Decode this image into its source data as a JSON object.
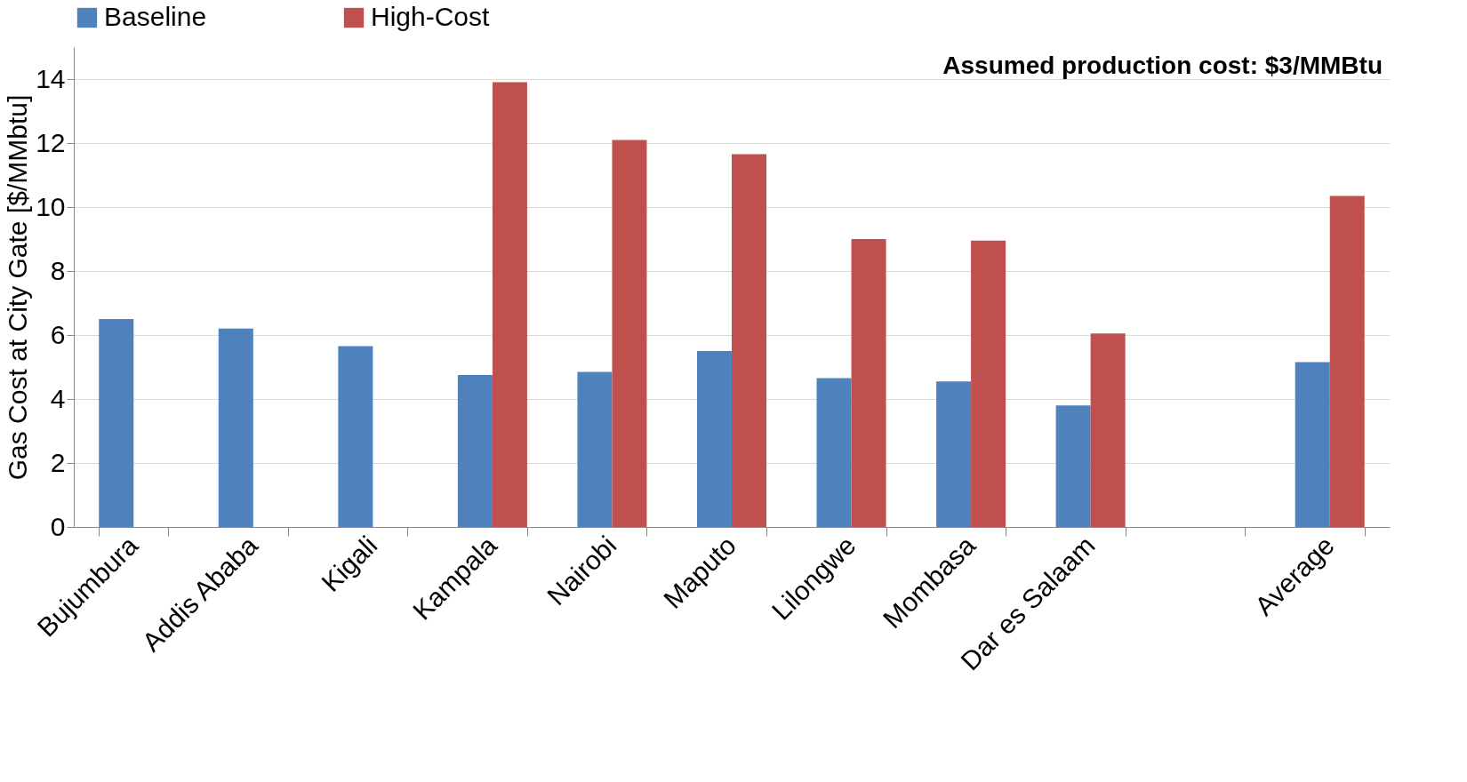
{
  "chart_data": {
    "type": "bar",
    "categories": [
      "Bujumbura",
      "Addis Ababa",
      "Kigali",
      "Kampala",
      "Nairobi",
      "Maputo",
      "Lilongwe",
      "Mombasa",
      "Dar es Salaam",
      null,
      "Average"
    ],
    "series": [
      {
        "name": "Baseline",
        "color": "#4f81bd",
        "values": [
          6.5,
          6.2,
          5.65,
          4.75,
          4.85,
          5.5,
          4.65,
          4.55,
          3.8,
          null,
          5.15
        ]
      },
      {
        "name": "High-Cost",
        "color": "#c0504d",
        "values": [
          null,
          null,
          null,
          13.9,
          12.1,
          11.65,
          9.0,
          8.95,
          6.05,
          null,
          10.35
        ]
      }
    ],
    "ylabel": "Gas Cost at City Gate [$/MMbtu]",
    "ylim": [
      0,
      15
    ],
    "yticks": [
      0,
      2,
      4,
      6,
      8,
      10,
      12,
      14
    ],
    "annotations": [
      "Assumed production cost: $3/MMBtu"
    ],
    "grid": "y",
    "legend": "top"
  }
}
